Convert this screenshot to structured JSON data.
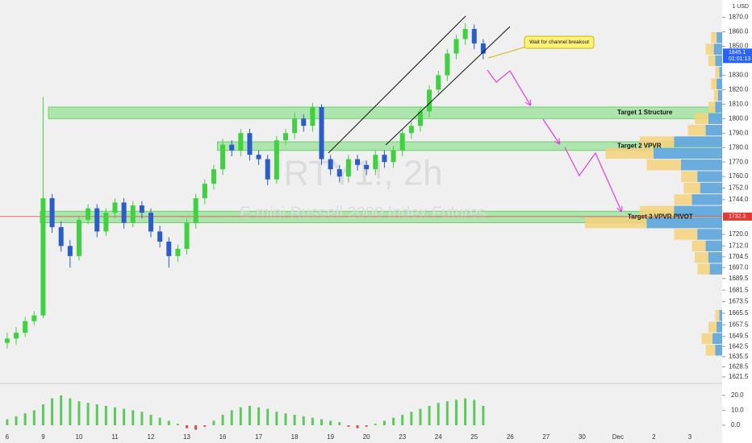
{
  "chart_data": {
    "type": "candlestick",
    "symbol": "RTY1!, 2h",
    "description": "E-mini Russell 2000 Index Futures",
    "currency": "1 USD",
    "callout": "Wait for channel breakout",
    "up_color": "#3fd13f",
    "down_color": "#2b5cc8",
    "xlim": [
      -0.2,
      19.9
    ],
    "ylim": [
      1617,
      1882
    ],
    "xticks": [
      {
        "value": 0,
        "label": "6"
      },
      {
        "value": 1,
        "label": "9"
      },
      {
        "value": 2,
        "label": "10"
      },
      {
        "value": 3,
        "label": "11"
      },
      {
        "value": 4,
        "label": "12"
      },
      {
        "value": 5,
        "label": "13"
      },
      {
        "value": 6,
        "label": "16"
      },
      {
        "value": 7,
        "label": "17"
      },
      {
        "value": 8,
        "label": "18"
      },
      {
        "value": 9,
        "label": "19"
      },
      {
        "value": 10,
        "label": "20"
      },
      {
        "value": 11,
        "label": "23"
      },
      {
        "value": 12,
        "label": "24"
      },
      {
        "value": 13,
        "label": "25"
      },
      {
        "value": 14,
        "label": "26"
      },
      {
        "value": 15,
        "label": "27"
      },
      {
        "value": 16,
        "label": "30"
      },
      {
        "value": 17,
        "label": "Dec"
      },
      {
        "value": 18,
        "label": "2"
      },
      {
        "value": 19,
        "label": "3"
      }
    ],
    "yticks": [
      {
        "value": 1870,
        "label": "1870.0"
      },
      {
        "value": 1860,
        "label": "1860.0"
      },
      {
        "value": 1850,
        "label": "1850.0"
      },
      {
        "value": 1830,
        "label": "1830.0"
      },
      {
        "value": 1820,
        "label": "1820.0"
      },
      {
        "value": 1810,
        "label": "1810.0"
      },
      {
        "value": 1800,
        "label": "1800.0"
      },
      {
        "value": 1790,
        "label": "1790.0"
      },
      {
        "value": 1780,
        "label": "1780.0"
      },
      {
        "value": 1770,
        "label": "1770.0"
      },
      {
        "value": 1760,
        "label": "1760.0"
      },
      {
        "value": 1752,
        "label": "1752.0"
      },
      {
        "value": 1744,
        "label": "1744.0"
      },
      {
        "value": 1720,
        "label": "1720.0"
      },
      {
        "value": 1712,
        "label": "1712.0"
      },
      {
        "value": 1704.5,
        "label": "1704.5"
      },
      {
        "value": 1697,
        "label": "1697.0"
      },
      {
        "value": 1689.5,
        "label": "1689.5"
      },
      {
        "value": 1681.5,
        "label": "1681.5"
      },
      {
        "value": 1673.5,
        "label": "1673.5"
      },
      {
        "value": 1665.5,
        "label": "1665.5"
      },
      {
        "value": 1657.5,
        "label": "1657.5"
      },
      {
        "value": 1649.5,
        "label": "1649.5"
      },
      {
        "value": 1642.5,
        "label": "1642.5"
      },
      {
        "value": 1635.5,
        "label": "1635.5"
      },
      {
        "value": 1628.5,
        "label": "1628.5"
      },
      {
        "value": 1621.5,
        "label": "1621.5"
      }
    ],
    "last_price": 1845.1,
    "countdown": "01:01:13",
    "pivot_price": 1732.3,
    "zones": [
      {
        "low": 1800,
        "high": 1808,
        "start": 1.15,
        "label": "Target 1 Structure"
      },
      {
        "low": 1778,
        "high": 1784,
        "start": 5.85,
        "label": "Target 2 VPVR"
      },
      {
        "low": 1728,
        "high": 1736,
        "start": 0.92,
        "label": "Target 3 VPVR PIVOT"
      }
    ],
    "x": [
      0,
      0.25,
      0.5,
      0.75,
      1,
      1.25,
      1.5,
      1.75,
      2,
      2.25,
      2.5,
      2.75,
      3,
      3.25,
      3.5,
      3.75,
      4,
      4.25,
      4.5,
      4.75,
      5,
      5.25,
      5.5,
      5.75,
      6,
      6.25,
      6.5,
      6.75,
      7,
      7.25,
      7.5,
      7.75,
      8,
      8.25,
      8.5,
      8.75,
      9,
      9.25,
      9.5,
      9.75,
      10,
      10.25,
      10.5,
      10.75,
      11,
      11.25,
      11.5,
      11.75,
      12,
      12.25,
      12.5,
      12.75,
      13,
      13.25
    ],
    "open": [
      1645,
      1648,
      1652,
      1660,
      1664,
      1745,
      1725,
      1712,
      1705,
      1730,
      1738,
      1722,
      1735,
      1742,
      1728,
      1740,
      1735,
      1722,
      1715,
      1705,
      1710,
      1728,
      1745,
      1755,
      1765,
      1782,
      1778,
      1790,
      1775,
      1772,
      1758,
      1785,
      1790,
      1800,
      1795,
      1808,
      1772,
      1765,
      1760,
      1772,
      1768,
      1765,
      1775,
      1770,
      1778,
      1790,
      1795,
      1805,
      1820,
      1830,
      1845,
      1855,
      1862,
      1852
    ],
    "high": [
      1652,
      1656,
      1663,
      1667,
      1815,
      1748,
      1729,
      1716,
      1733,
      1741,
      1741,
      1738,
      1745,
      1745,
      1743,
      1743,
      1738,
      1726,
      1718,
      1713,
      1731,
      1748,
      1758,
      1768,
      1786,
      1785,
      1793,
      1793,
      1778,
      1775,
      1788,
      1793,
      1804,
      1803,
      1811,
      1810,
      1775,
      1768,
      1775,
      1775,
      1771,
      1778,
      1778,
      1781,
      1793,
      1798,
      1808,
      1823,
      1833,
      1848,
      1858,
      1866,
      1865,
      1855
    ],
    "low": [
      1641,
      1644,
      1649,
      1657,
      1662,
      1721,
      1708,
      1697,
      1702,
      1727,
      1718,
      1719,
      1731,
      1724,
      1725,
      1731,
      1718,
      1711,
      1697,
      1701,
      1706,
      1724,
      1741,
      1751,
      1761,
      1774,
      1774,
      1771,
      1768,
      1754,
      1755,
      1782,
      1786,
      1791,
      1791,
      1768,
      1761,
      1756,
      1756,
      1764,
      1761,
      1761,
      1766,
      1766,
      1774,
      1786,
      1791,
      1801,
      1816,
      1826,
      1841,
      1851,
      1848,
      1841
    ],
    "close": [
      1648,
      1652,
      1660,
      1664,
      1745,
      1725,
      1712,
      1705,
      1730,
      1738,
      1722,
      1735,
      1742,
      1728,
      1740,
      1735,
      1722,
      1715,
      1705,
      1710,
      1728,
      1745,
      1755,
      1765,
      1782,
      1778,
      1790,
      1775,
      1772,
      1758,
      1785,
      1790,
      1800,
      1795,
      1808,
      1772,
      1765,
      1760,
      1772,
      1768,
      1765,
      1775,
      1770,
      1778,
      1790,
      1795,
      1805,
      1820,
      1830,
      1845,
      1855,
      1862,
      1852,
      1845
    ],
    "volume_profile": {
      "prices": [
        1640,
        1648,
        1656,
        1664,
        1696,
        1704,
        1712,
        1720,
        1728,
        1736,
        1744,
        1752,
        1760,
        1768,
        1776,
        1784,
        1792,
        1800,
        1808,
        1816,
        1824,
        1832,
        1840,
        1848,
        1856
      ],
      "values": [
        12,
        15,
        10,
        5,
        18,
        20,
        22,
        35,
        100,
        60,
        35,
        28,
        30,
        55,
        85,
        60,
        25,
        20,
        10,
        6,
        8,
        5,
        10,
        12,
        8
      ],
      "up_values": [
        5,
        7,
        4,
        2,
        9,
        10,
        12,
        18,
        55,
        35,
        22,
        16,
        18,
        30,
        50,
        35,
        12,
        10,
        5,
        3,
        4,
        2,
        5,
        6,
        4
      ],
      "color": "#f5d27a",
      "up_color": "#5aa7e6"
    },
    "indicator": {
      "ylim": [
        -10.8,
        28
      ],
      "yticks": [
        {
          "value": 20,
          "label": "20.0"
        },
        {
          "value": 10,
          "label": "10.0"
        },
        {
          "value": 0,
          "label": "0.0"
        }
      ],
      "pos_color": "#5cc95c",
      "neg_color": "#d94f4f",
      "values": [
        4,
        6,
        8,
        10,
        14,
        18,
        20,
        18,
        16,
        15,
        14,
        13,
        12,
        11,
        10,
        9,
        7,
        5,
        3,
        1,
        -2,
        -3,
        -1,
        3,
        7,
        10,
        12,
        13,
        12,
        11,
        9,
        8,
        7,
        6,
        5,
        4,
        3,
        2,
        -1,
        -2,
        -1,
        1,
        3,
        5,
        7,
        9,
        11,
        13,
        15,
        16,
        17,
        18,
        17,
        13
      ]
    }
  }
}
